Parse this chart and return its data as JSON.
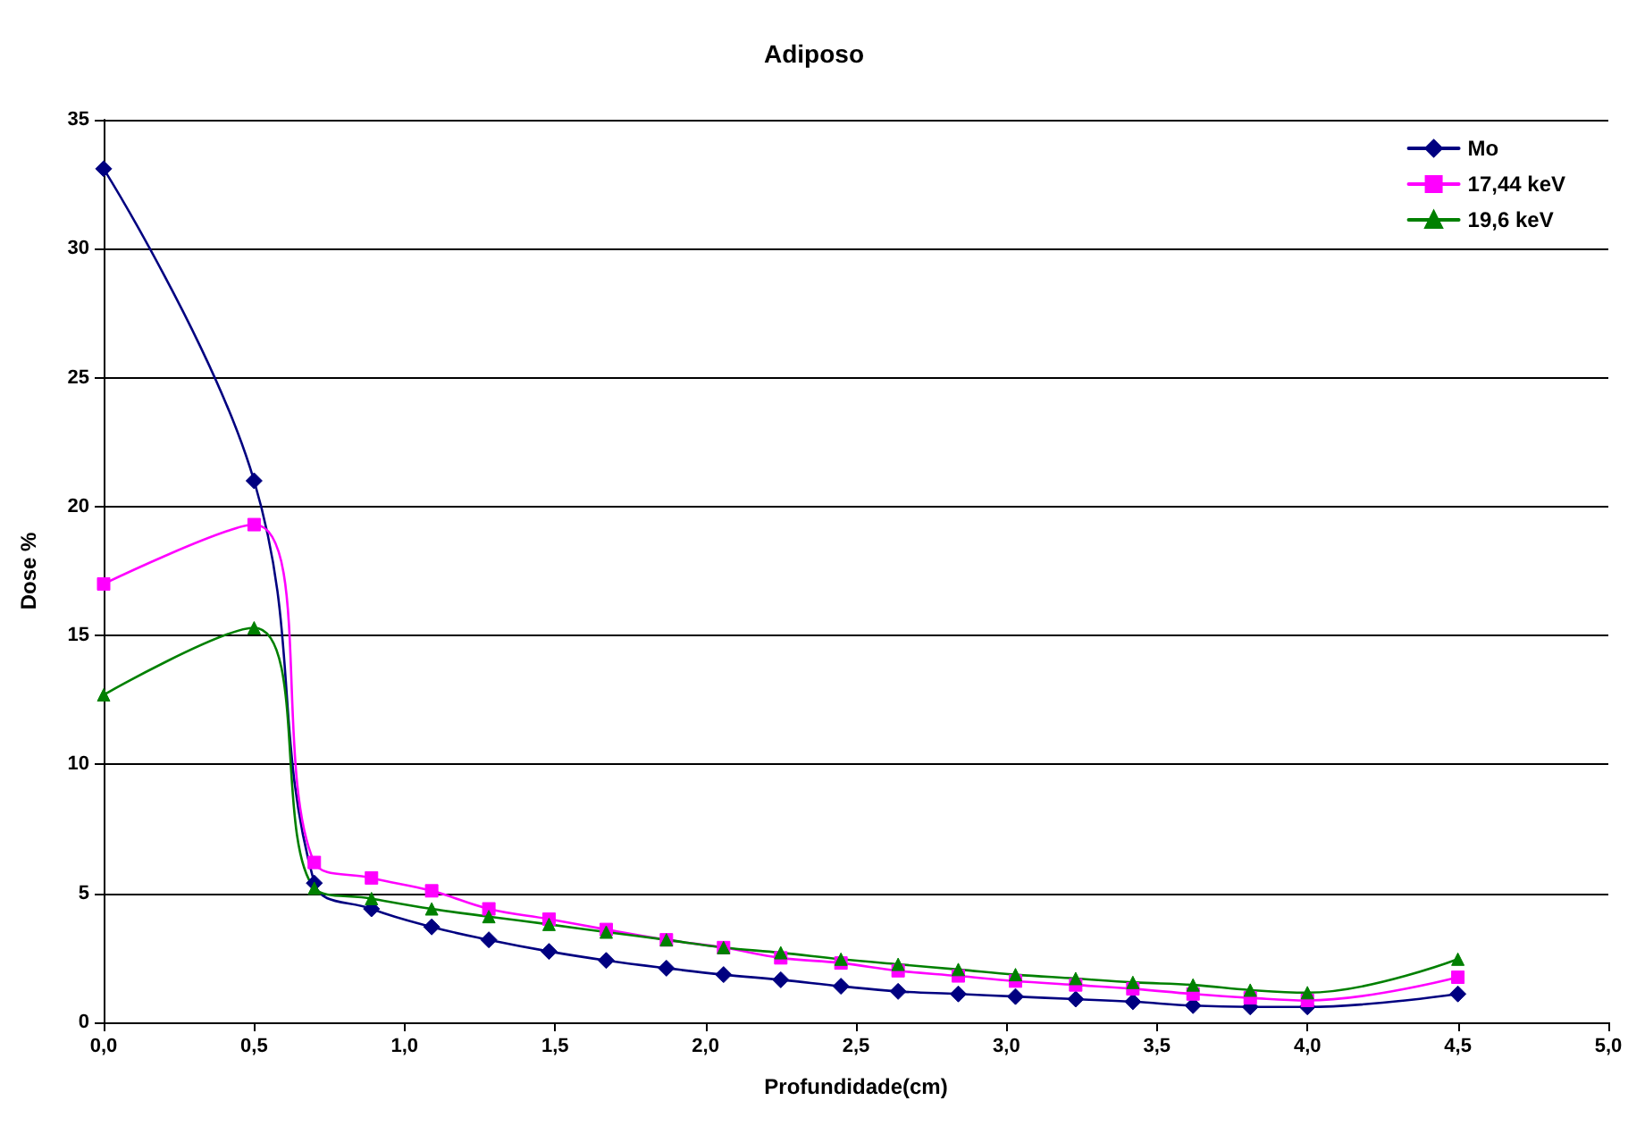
{
  "chart_data": {
    "type": "line",
    "title": "Adiposo",
    "xlabel": "Profundidade(cm)",
    "ylabel": "Dose %",
    "x": [
      0,
      0.5,
      0.7,
      0.89,
      1.09,
      1.28,
      1.48,
      1.67,
      1.87,
      2.06,
      2.25,
      2.45,
      2.64,
      2.84,
      3.03,
      3.23,
      3.42,
      3.62,
      3.81,
      4.0,
      4.5
    ],
    "series": [
      {
        "name": "Mo",
        "color": "#000080",
        "marker": "diamond",
        "values": [
          33.1,
          21,
          5.4,
          4.4,
          3.7,
          3.2,
          2.75,
          2.4,
          2.1,
          1.85,
          1.65,
          1.4,
          1.2,
          1.1,
          1.0,
          0.9,
          0.8,
          0.65,
          0.6,
          0.6,
          1.1
        ]
      },
      {
        "name": "17,44 keV",
        "color": "#ff00ff",
        "marker": "square",
        "values": [
          17,
          19.3,
          6.2,
          5.6,
          5.1,
          4.4,
          4.0,
          3.6,
          3.2,
          2.9,
          2.5,
          2.3,
          2.0,
          1.8,
          1.6,
          1.45,
          1.3,
          1.1,
          0.95,
          0.85,
          1.75
        ]
      },
      {
        "name": "19,6 keV",
        "color": "#008000",
        "marker": "triangle",
        "values": [
          12.7,
          15.3,
          5.2,
          4.8,
          4.4,
          4.1,
          3.8,
          3.5,
          3.2,
          2.9,
          2.7,
          2.45,
          2.25,
          2.05,
          1.85,
          1.7,
          1.55,
          1.45,
          1.25,
          1.15,
          2.45
        ]
      }
    ],
    "xlim": [
      0,
      5
    ],
    "xticks": [
      {
        "value": 0,
        "label": "0,0"
      },
      {
        "value": 0.5,
        "label": "0,5"
      },
      {
        "value": 1,
        "label": "1,0"
      },
      {
        "value": 1.5,
        "label": "1,5"
      },
      {
        "value": 2,
        "label": "2,0"
      },
      {
        "value": 2.5,
        "label": "2,5"
      },
      {
        "value": 3,
        "label": "3,0"
      },
      {
        "value": 3.5,
        "label": "3,5"
      },
      {
        "value": 4,
        "label": "4,0"
      },
      {
        "value": 4.5,
        "label": "4,5"
      },
      {
        "value": 5,
        "label": "5,0"
      }
    ],
    "ylim": [
      0,
      35
    ],
    "yticks": [
      0,
      5,
      10,
      15,
      20,
      25,
      30,
      35
    ],
    "grid": "y",
    "legend": "top right",
    "line_style": "solid"
  }
}
